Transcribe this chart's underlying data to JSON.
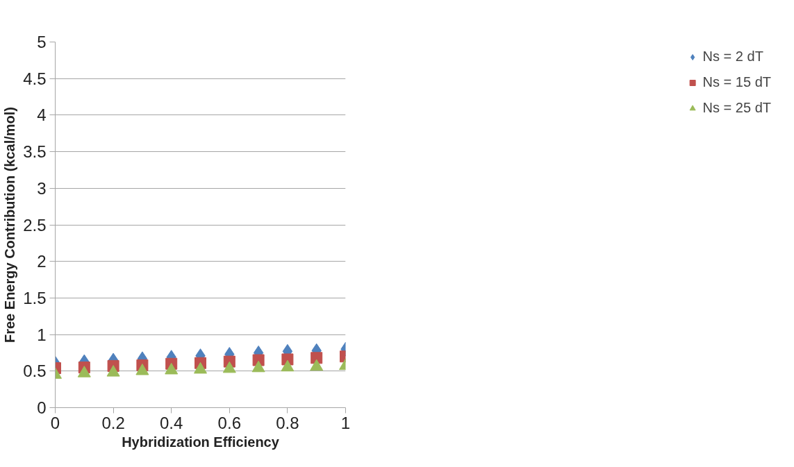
{
  "chart_data": {
    "type": "scatter",
    "xlabel": "Hybridization Efficiency",
    "ylabel": "Free Energy Contribution (kcal/mol)",
    "x": [
      0,
      0.1,
      0.2,
      0.3,
      0.4,
      0.5,
      0.6,
      0.7,
      0.8,
      0.9,
      1
    ],
    "series": [
      {
        "name": "Ns = 2 dT",
        "color": "#4f81bd",
        "marker": "diamond",
        "values": [
          0.61,
          0.63,
          0.65,
          0.67,
          0.69,
          0.71,
          0.73,
          0.75,
          0.77,
          0.78,
          0.8
        ]
      },
      {
        "name": "Ns = 15 dT",
        "color": "#c0504d",
        "marker": "square",
        "values": [
          0.54,
          0.55,
          0.57,
          0.58,
          0.6,
          0.61,
          0.63,
          0.65,
          0.66,
          0.68,
          0.7
        ]
      },
      {
        "name": "Ns = 25 dT",
        "color": "#9bbb59",
        "marker": "triangle",
        "values": [
          0.45,
          0.47,
          0.48,
          0.5,
          0.51,
          0.52,
          0.53,
          0.54,
          0.55,
          0.56,
          0.57
        ]
      }
    ],
    "xlim": [
      0,
      1
    ],
    "xticks": [
      0,
      0.2,
      0.4,
      0.6,
      0.8,
      1
    ],
    "ylim": [
      0,
      5
    ],
    "yticks": [
      0,
      0.5,
      1,
      1.5,
      2,
      2.5,
      3,
      3.5,
      4,
      4.5,
      5
    ],
    "grid": "y",
    "legend": "right"
  }
}
